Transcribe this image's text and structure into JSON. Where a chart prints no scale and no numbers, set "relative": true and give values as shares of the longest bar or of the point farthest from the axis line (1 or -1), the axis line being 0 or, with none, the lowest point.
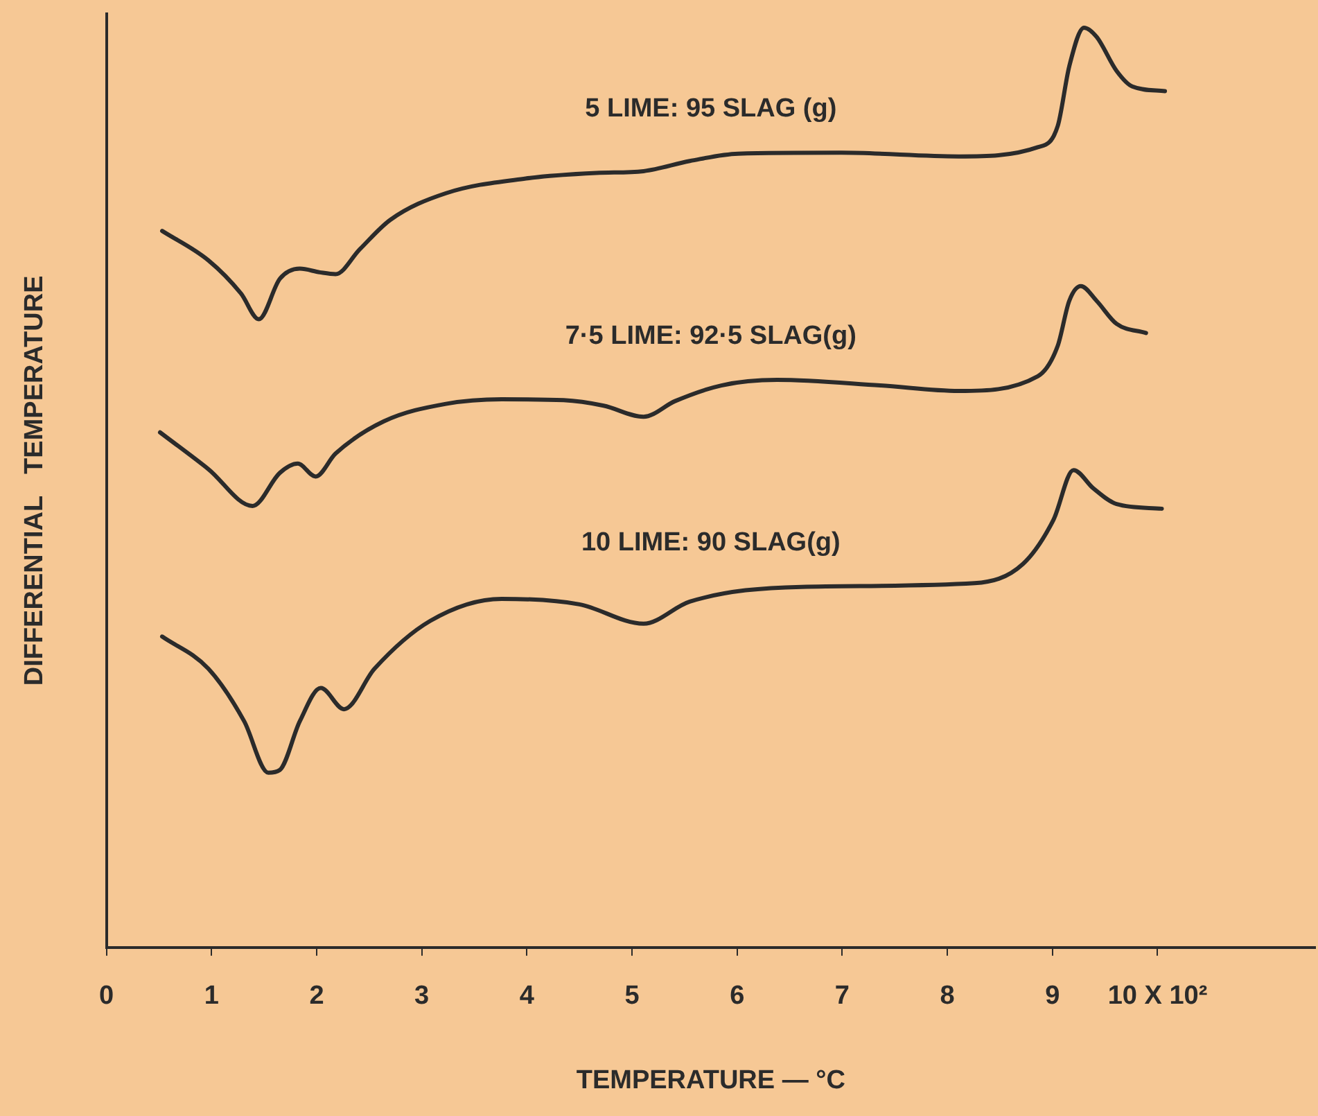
{
  "chart_data": {
    "type": "line",
    "xlabel": "TEMPERATURE — °C",
    "ylabel": "DIFFERENTIAL   TEMPERATURE",
    "relative": true,
    "xlim": [
      0,
      11.5
    ],
    "xticks": [
      0,
      1,
      2,
      3,
      4,
      5,
      6,
      7,
      8,
      9,
      {
        "value": 10,
        "label": "10 X 10²"
      }
    ],
    "grid": false,
    "legend": false,
    "marker": "none",
    "line_style": "solid",
    "series": [
      {
        "name": "5 LIME: 95 SLAG (g)",
        "color": "#2b2b2b",
        "x": [
          0.53,
          0.97,
          1.28,
          1.45,
          1.65,
          1.84,
          2.03,
          2.18,
          2.41,
          2.7,
          3.23,
          3.99,
          4.66,
          5.11,
          5.55,
          6.01,
          6.99,
          8.11,
          8.86,
          9.05,
          9.16,
          9.3,
          9.42,
          9.61,
          9.76,
          10.07
        ],
        "values": [
          0.779,
          0.747,
          0.711,
          0.683,
          0.727,
          0.738,
          0.734,
          0.732,
          0.759,
          0.791,
          0.82,
          0.836,
          0.842,
          0.844,
          0.855,
          0.863,
          0.864,
          0.86,
          0.87,
          0.893,
          0.958,
          1.0,
          0.99,
          0.953,
          0.936,
          0.931
        ]
      },
      {
        "name": "7·5 LIME: 92·5 SLAG(g)",
        "color": "#2b2b2b",
        "x": [
          0.51,
          0.97,
          1.39,
          1.65,
          1.82,
          1.99,
          2.18,
          2.64,
          3.23,
          3.76,
          4.35,
          4.73,
          5.11,
          5.41,
          5.85,
          6.38,
          7.36,
          8.11,
          8.86,
          9.05,
          9.16,
          9.27,
          9.42,
          9.61,
          9.89
        ],
        "values": [
          0.56,
          0.52,
          0.48,
          0.516,
          0.526,
          0.512,
          0.537,
          0.572,
          0.591,
          0.596,
          0.595,
          0.589,
          0.577,
          0.594,
          0.611,
          0.617,
          0.611,
          0.605,
          0.621,
          0.654,
          0.703,
          0.719,
          0.703,
          0.678,
          0.668
        ]
      },
      {
        "name": "10 LIME: 90 SLAG(g)",
        "color": "#2b2b2b",
        "x": [
          0.53,
          0.97,
          1.31,
          1.54,
          1.65,
          1.84,
          2.04,
          2.26,
          2.55,
          3.08,
          3.76,
          4.5,
          5.11,
          5.55,
          6.61,
          8.26,
          8.72,
          9.01,
          9.2,
          9.39,
          9.61,
          10.04
        ],
        "values": [
          0.338,
          0.303,
          0.246,
          0.19,
          0.193,
          0.246,
          0.282,
          0.259,
          0.303,
          0.355,
          0.379,
          0.373,
          0.352,
          0.376,
          0.392,
          0.396,
          0.417,
          0.465,
          0.519,
          0.499,
          0.482,
          0.477
        ]
      }
    ]
  }
}
